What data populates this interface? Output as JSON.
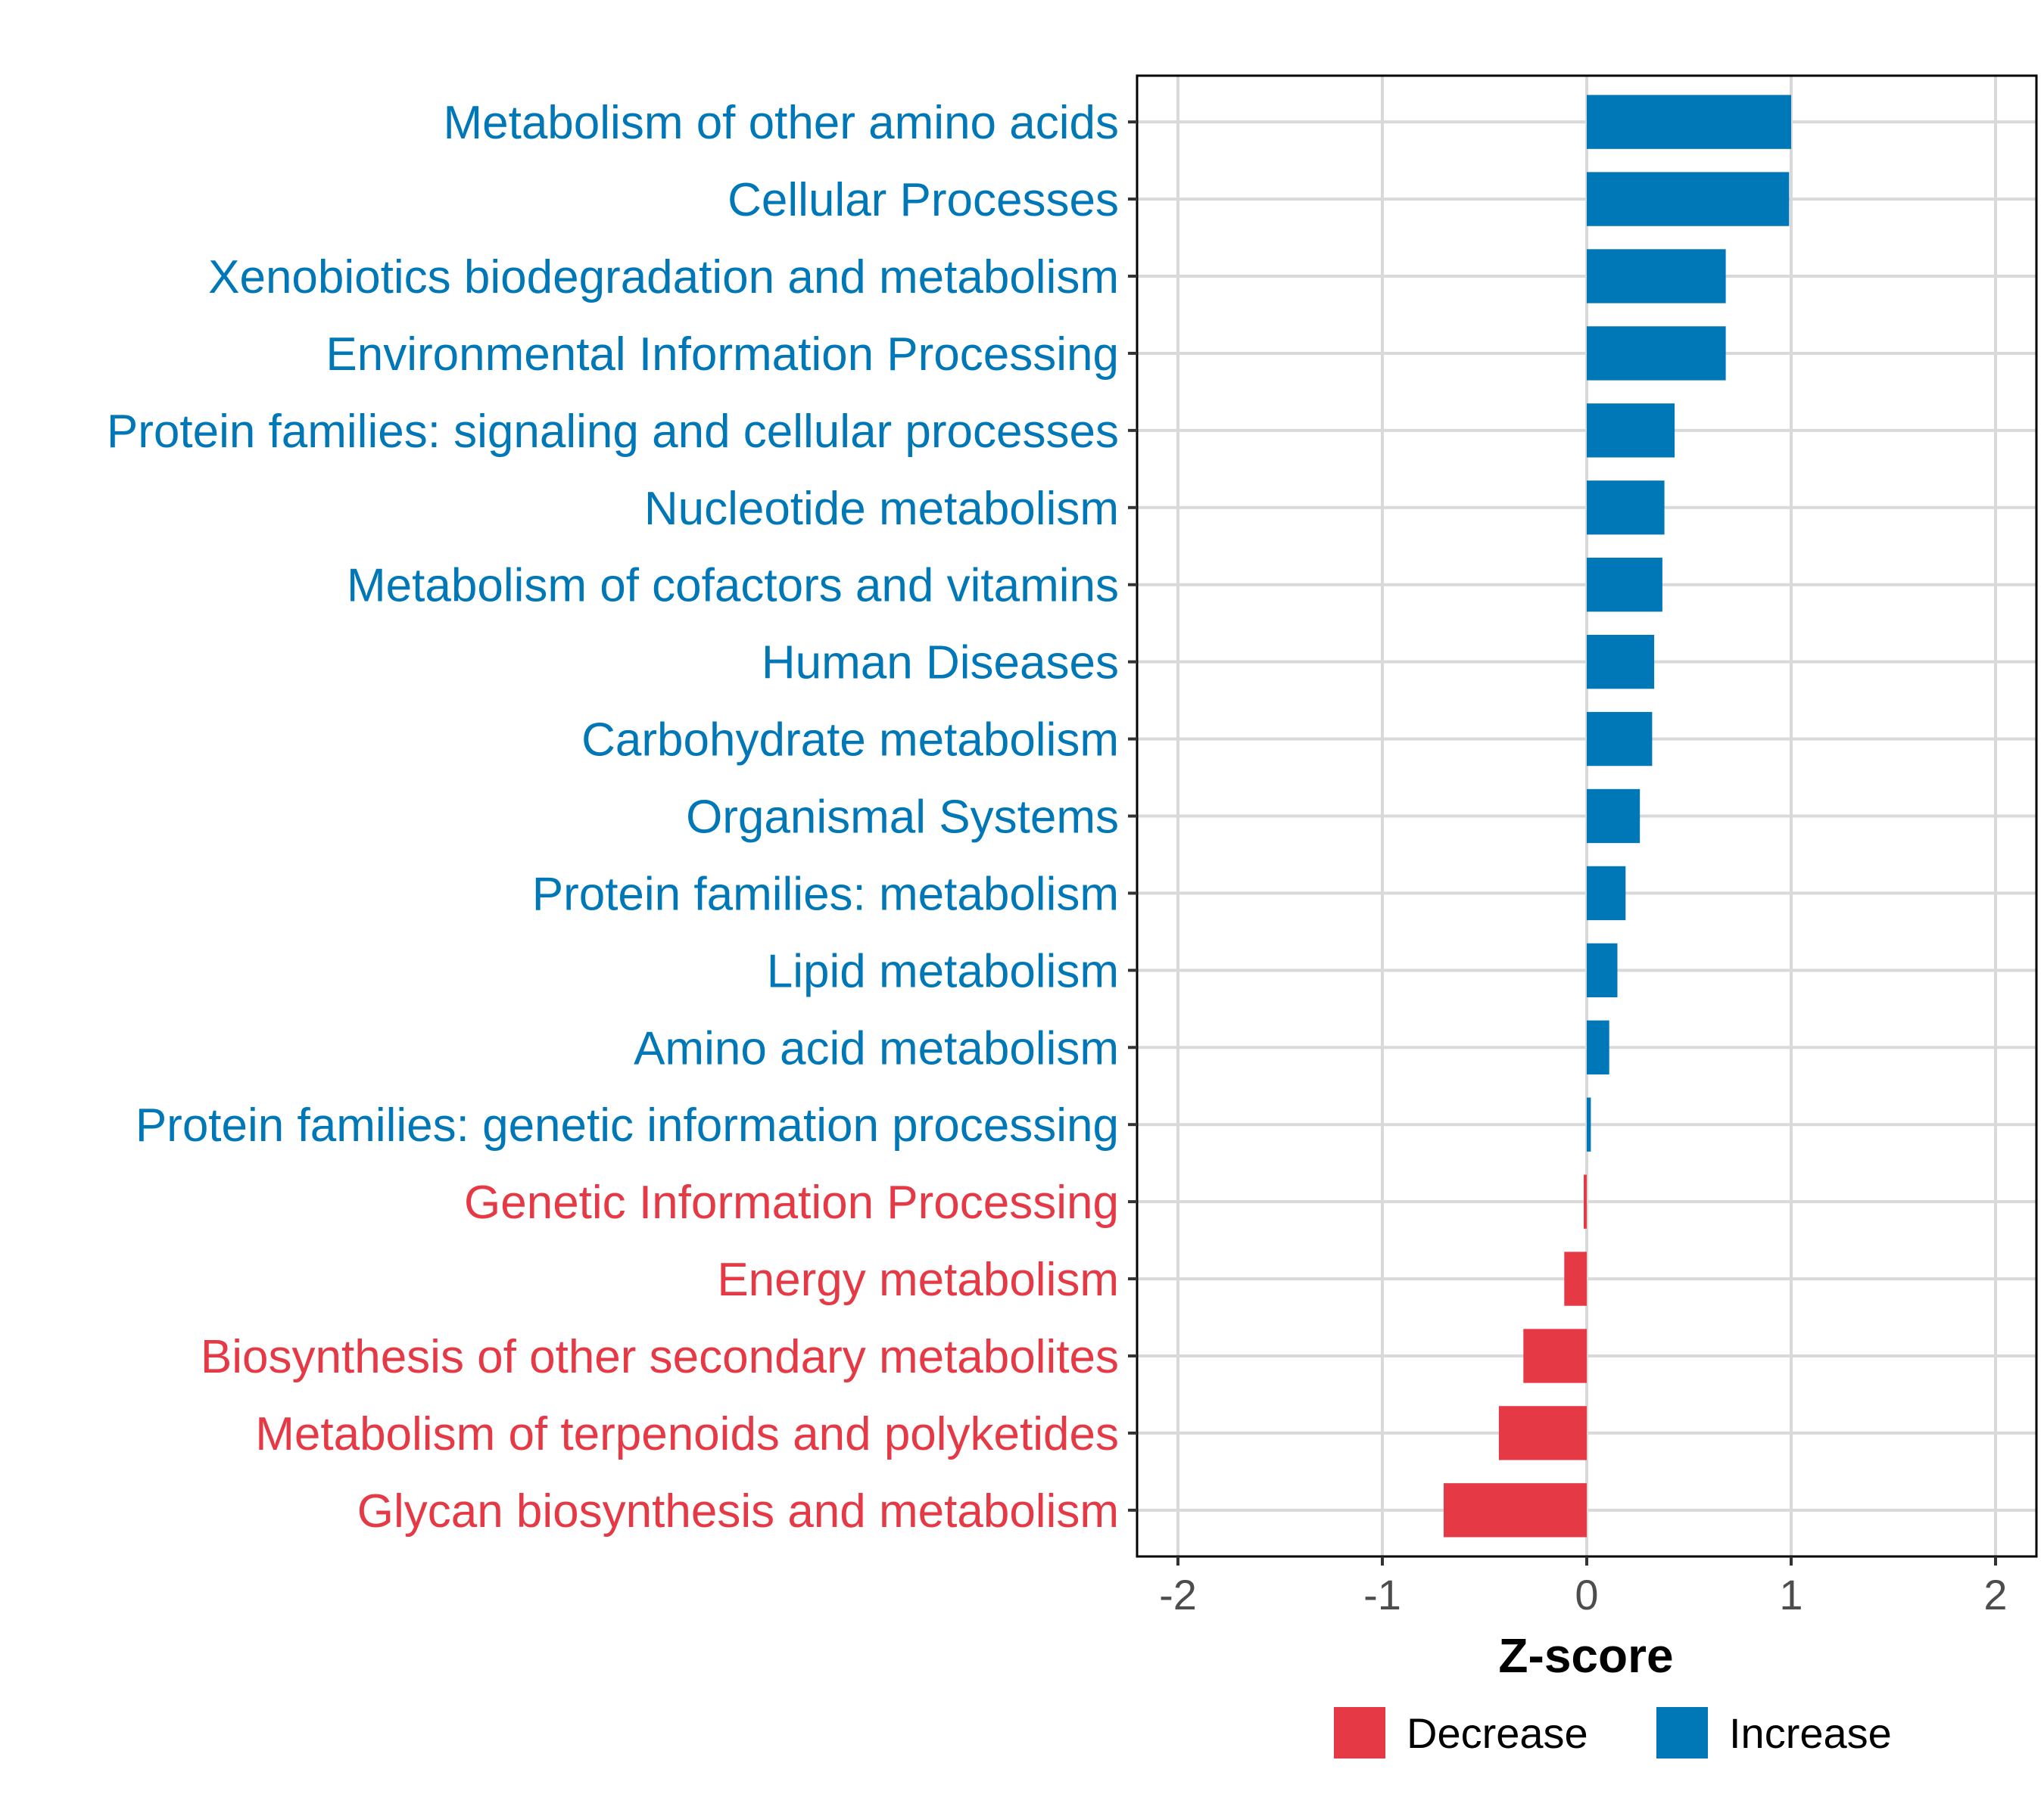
{
  "chart_data": {
    "type": "bar",
    "orientation": "horizontal",
    "title": "",
    "xlabel": "Z-score",
    "ylabel": "",
    "xlim": [
      -2.2,
      2.2
    ],
    "x_ticks": [
      -2,
      -1,
      0,
      1,
      2
    ],
    "x_tick_labels": [
      "-2",
      "-1",
      "0",
      "1",
      "2"
    ],
    "grid": true,
    "legend_position": "bottom",
    "colors": {
      "Decrease": "#e63946",
      "Increase": "#0077b6"
    },
    "categories": [
      "Metabolism of other amino acids",
      "Cellular Processes",
      "Xenobiotics biodegradation and metabolism",
      "Environmental Information Processing",
      "Protein families: signaling and cellular processes",
      "Nucleotide metabolism",
      "Metabolism of cofactors and vitamins",
      "Human Diseases",
      "Carbohydrate metabolism",
      "Organismal Systems",
      "Protein families: metabolism",
      "Lipid metabolism",
      "Amino acid metabolism",
      "Protein families: genetic information processing",
      "Genetic Information Processing",
      "Energy metabolism",
      "Biosynthesis of other secondary metabolites",
      "Metabolism of terpenoids and polyketides",
      "Glycan biosynthesis and metabolism"
    ],
    "values": [
      1.0,
      0.99,
      0.68,
      0.68,
      0.43,
      0.38,
      0.37,
      0.33,
      0.32,
      0.26,
      0.19,
      0.15,
      0.11,
      0.02,
      -0.01,
      -0.11,
      -0.31,
      -0.43,
      -0.7
    ],
    "groups": [
      "Increase",
      "Increase",
      "Increase",
      "Increase",
      "Increase",
      "Increase",
      "Increase",
      "Increase",
      "Increase",
      "Increase",
      "Increase",
      "Increase",
      "Increase",
      "Increase",
      "Decrease",
      "Decrease",
      "Decrease",
      "Decrease",
      "Decrease"
    ],
    "legend": [
      {
        "label": "Decrease",
        "color": "#e63946"
      },
      {
        "label": "Increase",
        "color": "#0077b6"
      }
    ]
  }
}
